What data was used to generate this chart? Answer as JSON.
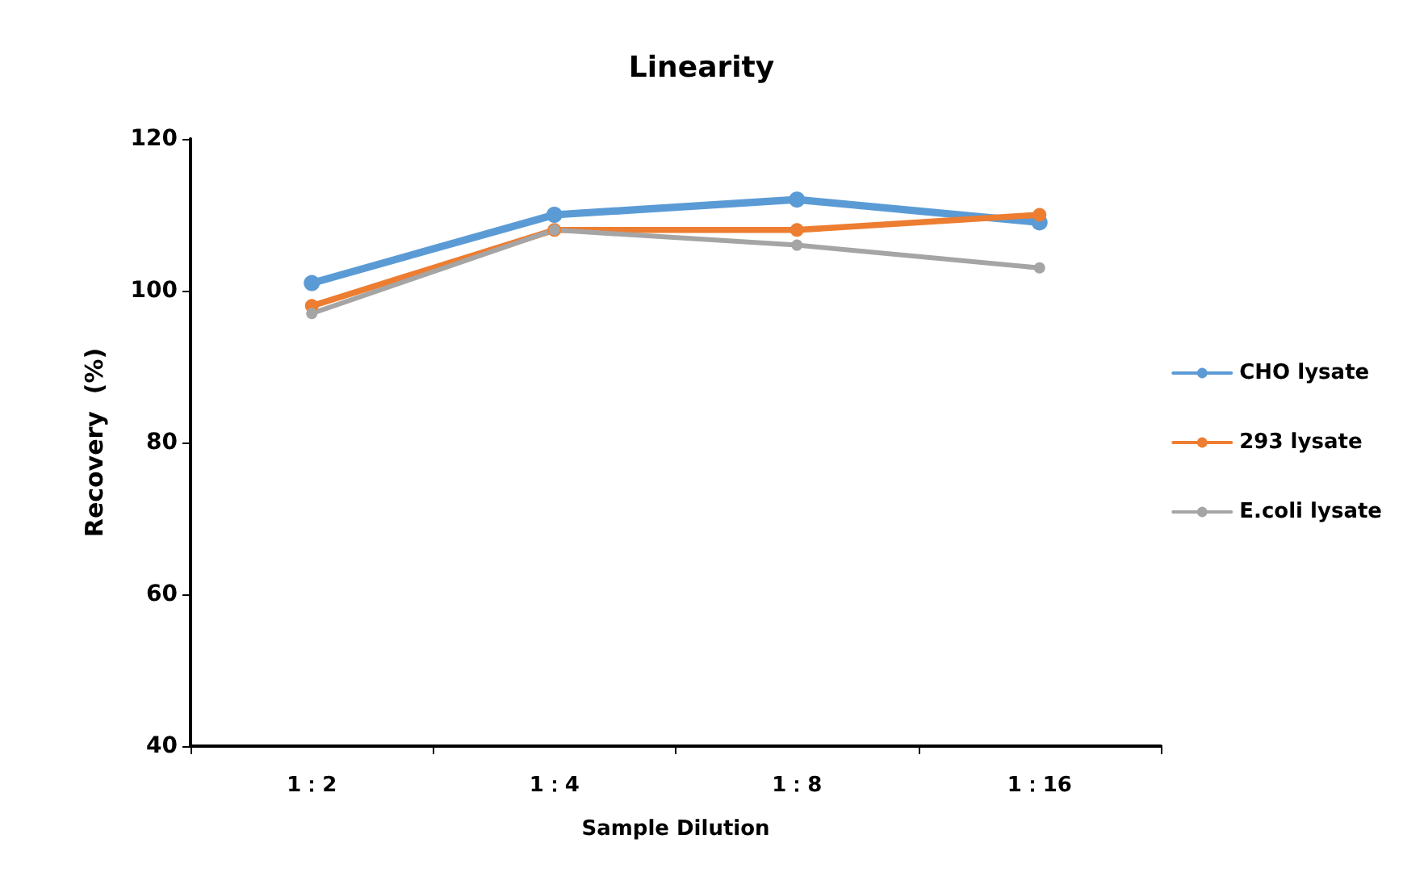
{
  "chart_data": {
    "type": "line",
    "title": "Linearity",
    "xlabel": "Sample Dilution",
    "ylabel": "Recovery  (%)",
    "categories": [
      "1：2",
      "1：4",
      "1：8",
      "1：16"
    ],
    "series": [
      {
        "name": "CHO lysate",
        "color": "#5b9bd5",
        "values": [
          101,
          110,
          112,
          109
        ]
      },
      {
        "name": "293 lysate",
        "color": "#ed7d31",
        "values": [
          98,
          108,
          108,
          110
        ]
      },
      {
        "name": "E.coli lysate",
        "color": "#a5a5a5",
        "values": [
          97,
          108,
          106,
          103
        ]
      }
    ],
    "ylim": [
      40,
      120
    ],
    "yticks": [
      40,
      60,
      80,
      100,
      120
    ],
    "grid": false,
    "legend": "right",
    "marker": "circle",
    "line_style": "solid"
  }
}
